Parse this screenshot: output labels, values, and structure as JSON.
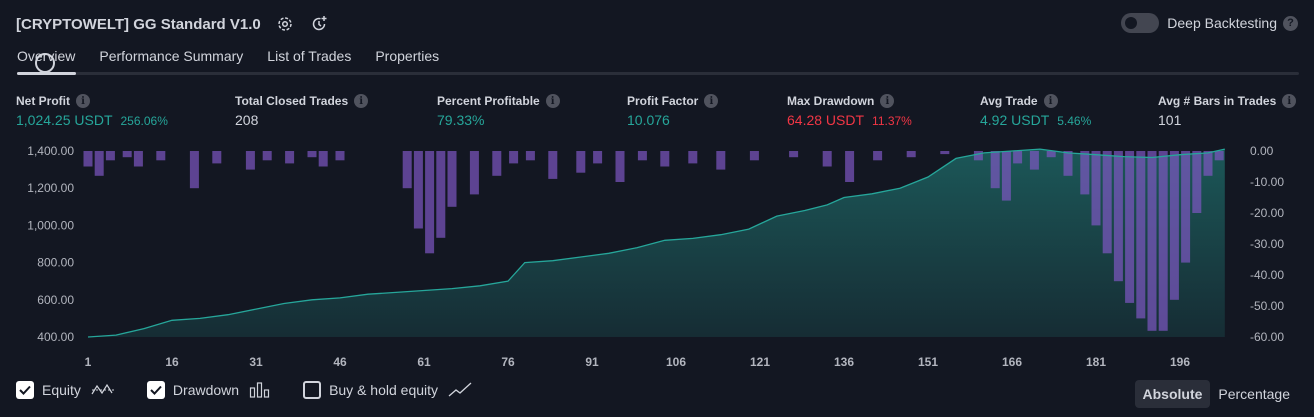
{
  "header": {
    "title": "[CRYPTOWELT] GG Standard V1.0",
    "deep_backtesting_label": "Deep Backtesting",
    "help_glyph": "?"
  },
  "tabs": [
    {
      "label": "Overview",
      "active": true
    },
    {
      "label": "Performance Summary"
    },
    {
      "label": "List of Trades"
    },
    {
      "label": "Properties"
    }
  ],
  "info_glyph": "i",
  "metrics": [
    {
      "label": "Net Profit",
      "value": "1,024.25 USDT",
      "sub": "256.06%",
      "color": "green"
    },
    {
      "label": "Total Closed Trades",
      "value": "208",
      "sub": "",
      "color": "white"
    },
    {
      "label": "Percent Profitable",
      "value": "79.33%",
      "sub": "",
      "color": "green"
    },
    {
      "label": "Profit Factor",
      "value": "10.076",
      "sub": "",
      "color": "green"
    },
    {
      "label": "Max Drawdown",
      "value": "64.28 USDT",
      "sub": "11.37%",
      "color": "red"
    },
    {
      "label": "Avg Trade",
      "value": "4.92 USDT",
      "sub": "5.46%",
      "color": "green"
    },
    {
      "label": "Avg # Bars in Trades",
      "value": "101",
      "sub": "",
      "color": "white"
    }
  ],
  "chart_data": {
    "type": "area",
    "series": [
      {
        "name": "Equity",
        "type": "area",
        "axis": "left",
        "color": "#26a69a",
        "x": [
          1,
          6,
          11,
          16,
          21,
          26,
          31,
          36,
          41,
          46,
          51,
          56,
          61,
          66,
          71,
          76,
          79,
          84,
          89,
          94,
          99,
          104,
          109,
          114,
          119,
          124,
          129,
          133,
          136,
          141,
          146,
          151,
          156,
          161,
          166,
          171,
          176,
          181,
          186,
          191,
          196,
          201,
          204
        ],
        "values": [
          400,
          410,
          445,
          490,
          500,
          520,
          550,
          580,
          600,
          610,
          630,
          640,
          650,
          660,
          675,
          700,
          800,
          810,
          830,
          850,
          880,
          920,
          930,
          950,
          980,
          1050,
          1080,
          1110,
          1150,
          1170,
          1200,
          1260,
          1360,
          1390,
          1400,
          1410,
          1390,
          1380,
          1370,
          1365,
          1380,
          1390,
          1410
        ]
      },
      {
        "name": "Drawdown",
        "type": "bar",
        "axis": "right",
        "color": "#7e57c2",
        "x": [
          1,
          3,
          5,
          8,
          10,
          14,
          20,
          24,
          30,
          33,
          37,
          41,
          43,
          46,
          58,
          60,
          62,
          64,
          66,
          70,
          74,
          77,
          80,
          84,
          89,
          92,
          96,
          100,
          104,
          109,
          114,
          120,
          127,
          133,
          137,
          142,
          148,
          154,
          160,
          163,
          165,
          167,
          170,
          173,
          176,
          179,
          181,
          183,
          185,
          187,
          189,
          191,
          193,
          195,
          197,
          199,
          201,
          203
        ],
        "values": [
          -5,
          -8,
          -3,
          -2,
          -5,
          -3,
          -12,
          -4,
          -6,
          -3,
          -4,
          -2,
          -5,
          -3,
          -12,
          -25,
          -33,
          -28,
          -18,
          -14,
          -8,
          -4,
          -3,
          -9,
          -7,
          -4,
          -10,
          -3,
          -5,
          -4,
          -6,
          -3,
          -2,
          -5,
          -10,
          -3,
          -2,
          -1,
          -3,
          -12,
          -16,
          -4,
          -6,
          -2,
          -8,
          -14,
          -24,
          -33,
          -42,
          -49,
          -54,
          -58,
          -58,
          -48,
          -36,
          -20,
          -8,
          -3
        ]
      }
    ],
    "x_ticks": [
      "1",
      "16",
      "31",
      "46",
      "61",
      "76",
      "91",
      "106",
      "121",
      "136",
      "151",
      "166",
      "181",
      "196"
    ],
    "y_left_ticks": [
      "1,400.00",
      "1,200.00",
      "1,000.00",
      "800.00",
      "600.00",
      "400.00"
    ],
    "y_right_ticks": [
      "0.00",
      "-10.00",
      "-20.00",
      "-30.00",
      "-40.00",
      "-50.00",
      "-60.00"
    ],
    "xlim": [
      1,
      206
    ],
    "ylim_left": [
      400,
      1400
    ],
    "ylim_right": [
      -60,
      0
    ],
    "grid": false
  },
  "footer": {
    "checkboxes": [
      {
        "label": "Equity",
        "checked": true
      },
      {
        "label": "Drawdown",
        "checked": true
      },
      {
        "label": "Buy & hold equity",
        "checked": false
      }
    ],
    "modes": [
      {
        "label": "Absolute",
        "selected": true
      },
      {
        "label": "Percentage",
        "selected": false
      }
    ]
  }
}
